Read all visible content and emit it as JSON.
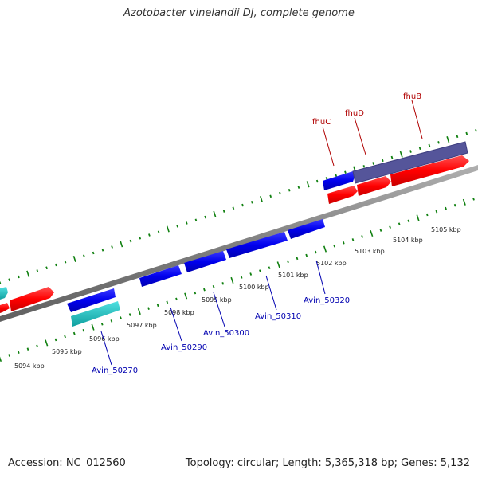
{
  "title": "Azotobacter vinelandii DJ, complete genome",
  "footer": {
    "accession": "Accession: NC_012560",
    "topology": "Topology: circular; Length: 5,365,318 bp; Genes: 5,132"
  },
  "colors": {
    "forward_gene": "#ff0000",
    "reverse_gene": "#0000ee",
    "rna_gene": "#20c8c8",
    "operon_box": "#55559a",
    "backbone": "#808080",
    "tick": "#108010",
    "label_forward": "#b00000",
    "label_reverse": "#0000b0"
  },
  "kbp_labels": [
    "5094 kbp",
    "5095 kbp",
    "5096 kbp",
    "5097 kbp",
    "5098 kbp",
    "5099 kbp",
    "5100 kbp",
    "5101 kbp",
    "5102 kbp",
    "5103 kbp",
    "5104 kbp",
    "5105 kbp"
  ],
  "gene_labels": {
    "fhuC": "fhuC",
    "fhuD": "fhuD",
    "fhuB": "fhuB",
    "avin50270": "Avin_50270",
    "avin50290": "Avin_50290",
    "avin50300": "Avin_50300",
    "avin50310": "Avin_50310",
    "avin50320": "Avin_50320"
  }
}
